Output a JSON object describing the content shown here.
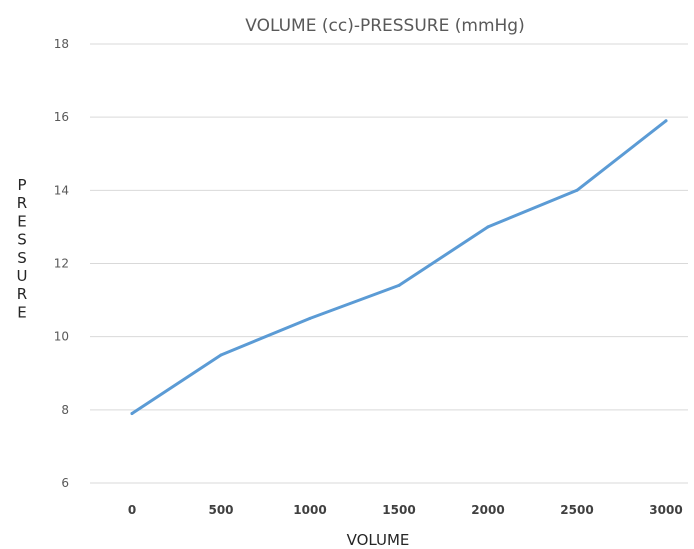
{
  "chart_data": {
    "type": "line",
    "title": "VOLUME (cc)-PRESSURE (mmHg)",
    "xlabel": "VOLUME",
    "ylabel": "PRESSURE",
    "categories": [
      "0",
      "500",
      "1000",
      "1500",
      "2000",
      "2500",
      "3000"
    ],
    "series": [
      {
        "values": [
          7.9,
          9.5,
          10.5,
          11.4,
          13.0,
          14.0,
          15.9
        ]
      }
    ],
    "ylim": [
      6,
      18
    ],
    "yticks": [
      "6",
      "8",
      "10",
      "12",
      "14",
      "16",
      "18"
    ],
    "grid": "horizontal",
    "legend": "none",
    "colors": {
      "series": "#5b9bd5",
      "grid": "#d9d9d9"
    }
  }
}
